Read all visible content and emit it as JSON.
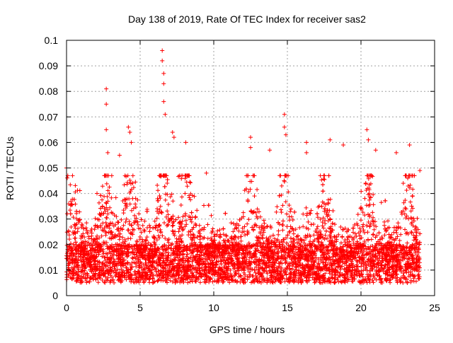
{
  "chart_data": {
    "type": "scatter",
    "title": "Day 138 of 2019, Rate Of TEC Index for receiver sas2",
    "xlabel": "GPS time / hours",
    "ylabel": "ROTI / TECUs",
    "xlim": [
      0,
      25
    ],
    "ylim": [
      0,
      0.1
    ],
    "xticks": [
      0,
      5,
      10,
      15,
      20,
      25
    ],
    "xtick_labels": [
      "0",
      "5",
      "10",
      "15",
      "20",
      "25"
    ],
    "yticks": [
      0,
      0.01,
      0.02,
      0.03,
      0.04,
      0.05,
      0.06,
      0.07,
      0.08,
      0.09,
      0.1
    ],
    "ytick_labels": [
      "0",
      "0.01",
      "0.02",
      "0.03",
      "0.04",
      "0.05",
      "0.06",
      "0.07",
      "0.08",
      "0.09",
      "0.1"
    ],
    "grid": true,
    "marker": "+",
    "color": "#ff0000",
    "series": [
      {
        "name": "sas2",
        "x_range": [
          0,
          24
        ],
        "typical_band": [
          0.005,
          0.025
        ],
        "outliers": [
          {
            "x": 0.0,
            "y": 0.05
          },
          {
            "x": 2.7,
            "y": 0.081
          },
          {
            "x": 2.7,
            "y": 0.075
          },
          {
            "x": 2.7,
            "y": 0.065
          },
          {
            "x": 2.8,
            "y": 0.056
          },
          {
            "x": 3.6,
            "y": 0.055
          },
          {
            "x": 4.2,
            "y": 0.066
          },
          {
            "x": 4.3,
            "y": 0.064
          },
          {
            "x": 4.4,
            "y": 0.06
          },
          {
            "x": 6.5,
            "y": 0.096
          },
          {
            "x": 6.5,
            "y": 0.092
          },
          {
            "x": 6.6,
            "y": 0.087
          },
          {
            "x": 6.6,
            "y": 0.083
          },
          {
            "x": 6.6,
            "y": 0.076
          },
          {
            "x": 6.7,
            "y": 0.071
          },
          {
            "x": 7.2,
            "y": 0.064
          },
          {
            "x": 7.3,
            "y": 0.062
          },
          {
            "x": 8.1,
            "y": 0.06
          },
          {
            "x": 9.5,
            "y": 0.048
          },
          {
            "x": 12.5,
            "y": 0.062
          },
          {
            "x": 12.5,
            "y": 0.058
          },
          {
            "x": 13.8,
            "y": 0.057
          },
          {
            "x": 14.8,
            "y": 0.071
          },
          {
            "x": 14.8,
            "y": 0.066
          },
          {
            "x": 14.9,
            "y": 0.063
          },
          {
            "x": 16.3,
            "y": 0.06
          },
          {
            "x": 16.3,
            "y": 0.056
          },
          {
            "x": 17.9,
            "y": 0.061
          },
          {
            "x": 18.8,
            "y": 0.059
          },
          {
            "x": 20.4,
            "y": 0.065
          },
          {
            "x": 20.5,
            "y": 0.061
          },
          {
            "x": 21.0,
            "y": 0.057
          },
          {
            "x": 22.4,
            "y": 0.056
          },
          {
            "x": 23.3,
            "y": 0.059
          },
          {
            "x": 24.0,
            "y": 0.049
          }
        ]
      }
    ]
  }
}
